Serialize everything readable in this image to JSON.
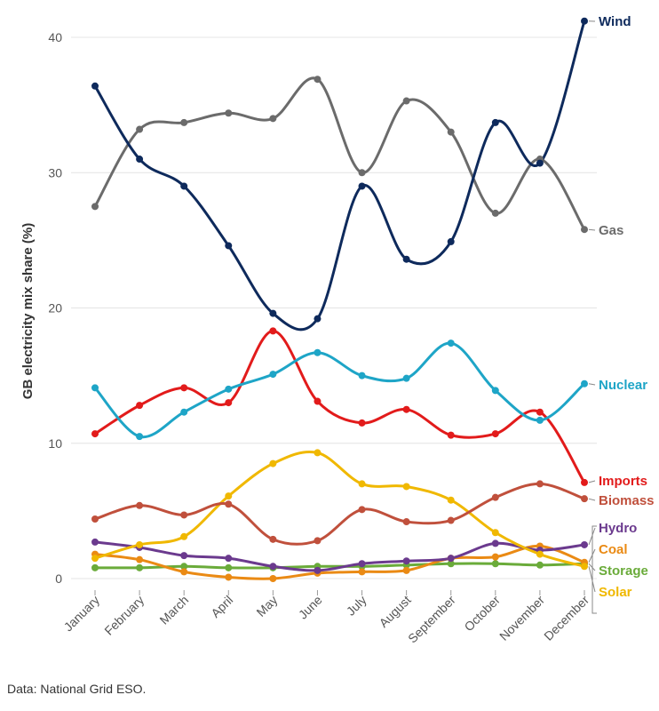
{
  "chart_data": {
    "type": "line",
    "title": "",
    "xlabel": "",
    "ylabel": "GB electricity mix share (%)",
    "ylim": [
      -1,
      43
    ],
    "yticks": [
      0,
      10,
      20,
      30,
      40
    ],
    "grid": "horizontal",
    "categories": [
      "January",
      "February",
      "March",
      "April",
      "May",
      "June",
      "July",
      "August",
      "September",
      "October",
      "November",
      "December"
    ],
    "series": [
      {
        "name": "Gas",
        "color": "#6b6b6b",
        "values": [
          27.5,
          33.2,
          33.7,
          34.4,
          34.0,
          36.9,
          30.0,
          35.3,
          33.0,
          27.0,
          31.0,
          25.8
        ]
      },
      {
        "name": "Wind",
        "color": "#0e2a5c",
        "values": [
          36.4,
          31.0,
          29.0,
          24.6,
          19.6,
          19.2,
          29.0,
          23.6,
          24.9,
          33.7,
          30.7,
          41.2
        ]
      },
      {
        "name": "Nuclear",
        "color": "#1ea5c7",
        "values": [
          14.1,
          10.5,
          12.3,
          14.0,
          15.1,
          16.7,
          15.0,
          14.8,
          17.4,
          13.9,
          11.7,
          14.4
        ]
      },
      {
        "name": "Imports",
        "color": "#e21b1b",
        "values": [
          10.7,
          12.8,
          14.1,
          13.0,
          18.3,
          13.1,
          11.5,
          12.5,
          10.6,
          10.7,
          12.3,
          7.1
        ]
      },
      {
        "name": "Biomass",
        "color": "#c0503c",
        "values": [
          4.4,
          5.4,
          4.7,
          5.5,
          2.9,
          2.8,
          5.1,
          4.2,
          4.3,
          6.0,
          7.0,
          5.9
        ]
      },
      {
        "name": "Solar",
        "color": "#f0b800",
        "values": [
          1.5,
          2.5,
          3.1,
          6.1,
          8.5,
          9.3,
          7.0,
          6.8,
          5.8,
          3.4,
          1.8,
          0.9
        ]
      },
      {
        "name": "Hydro",
        "color": "#6b3a8e",
        "values": [
          2.7,
          2.3,
          1.7,
          1.5,
          0.9,
          0.6,
          1.1,
          1.3,
          1.5,
          2.6,
          2.1,
          2.5
        ]
      },
      {
        "name": "Coal",
        "color": "#ea8a14",
        "values": [
          1.8,
          1.4,
          0.5,
          0.1,
          0.0,
          0.4,
          0.5,
          0.6,
          1.5,
          1.6,
          2.4,
          1.2
        ]
      },
      {
        "name": "Storage",
        "color": "#6aab3a",
        "values": [
          0.8,
          0.8,
          0.9,
          0.8,
          0.8,
          0.9,
          0.9,
          1.0,
          1.1,
          1.1,
          1.0,
          1.1
        ]
      }
    ],
    "legend": "end-of-line labels on the right",
    "source": "Data: National Grid ESO."
  }
}
